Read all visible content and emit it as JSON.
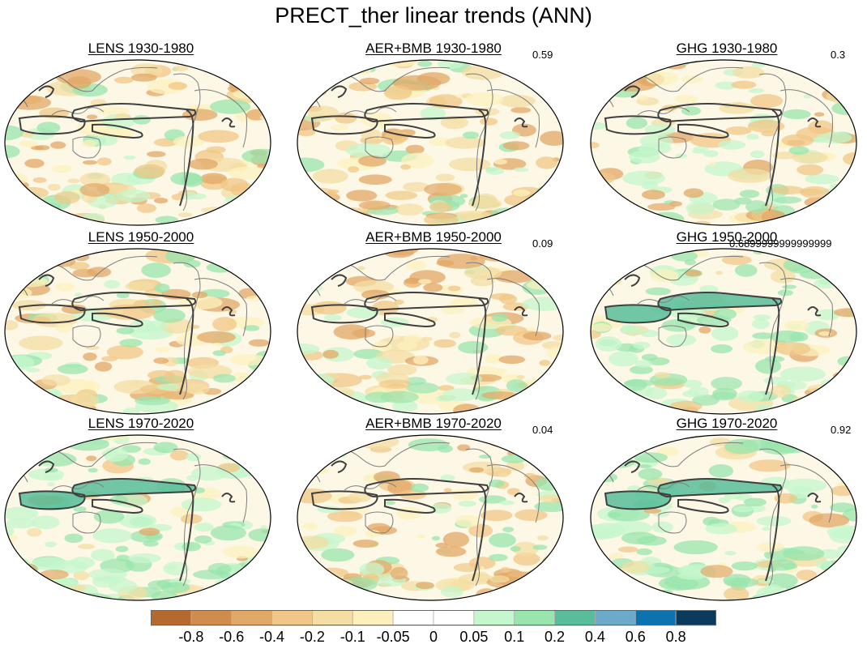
{
  "title": "PRECT_ther linear trends (ANN)",
  "panels": [
    {
      "title": "LENS 1930-1980",
      "corr": ""
    },
    {
      "title": "AER+BMB 1930-1980",
      "corr": "0.59"
    },
    {
      "title": "GHG 1930-1980",
      "corr": "0.3"
    },
    {
      "title": "LENS 1950-2000",
      "corr": ""
    },
    {
      "title": "AER+BMB 1950-2000",
      "corr": "0.09"
    },
    {
      "title": "GHG 1950-2000",
      "corr": "0.6899999999999999"
    },
    {
      "title": "LENS 1970-2020",
      "corr": ""
    },
    {
      "title": "AER+BMB 1970-2020",
      "corr": "0.04"
    },
    {
      "title": "GHG 1970-2020",
      "corr": "0.92"
    }
  ],
  "panel_wet_level": [
    0.25,
    0.3,
    0.45,
    0.4,
    0.3,
    0.7,
    0.8,
    0.3,
    0.75
  ],
  "colorbar": {
    "labels": [
      "-0.8",
      "-0.6",
      "-0.4",
      "-0.2",
      "-0.1",
      "-0.05",
      "0",
      "0.05",
      "0.1",
      "0.2",
      "0.4",
      "0.6",
      "0.8"
    ],
    "colors": [
      "#b5692c",
      "#cf8c4c",
      "#e1a867",
      "#f0c786",
      "#f3dea3",
      "#fcf1bd",
      "#ffffff",
      "#ffffff",
      "#c5f7cc",
      "#98e6ae",
      "#58bd9a",
      "#6baac8",
      "#0d73b0",
      "#0b3a5c"
    ]
  }
}
